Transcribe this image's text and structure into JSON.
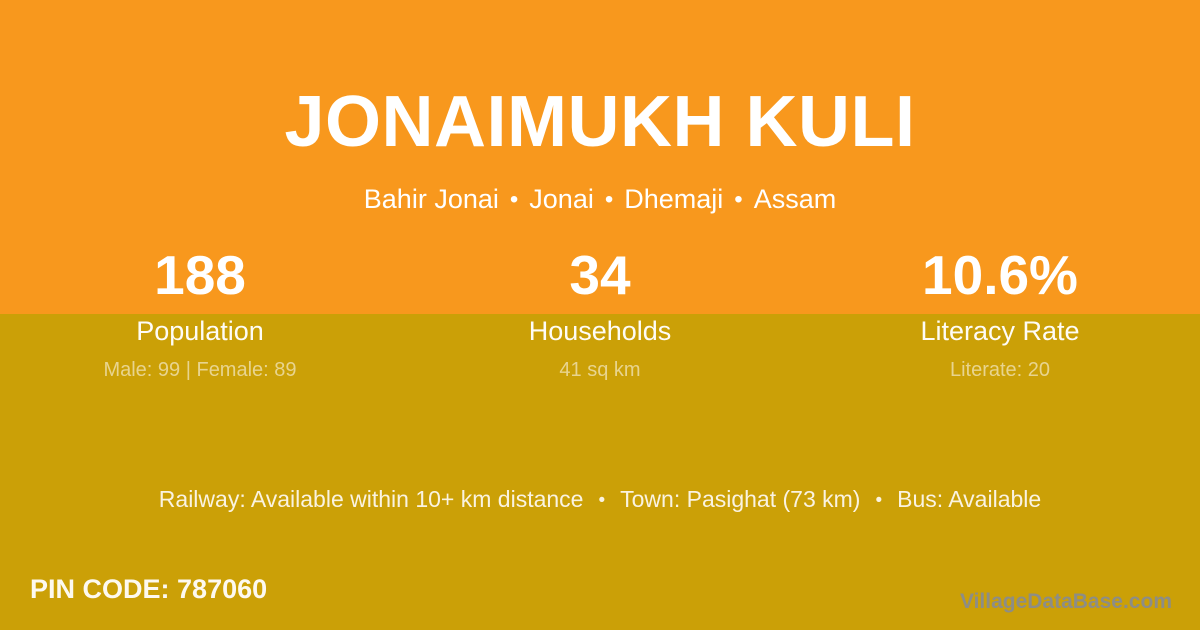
{
  "theme": {
    "orange": "#F8981D",
    "gold": "#CBA007",
    "text_white": "#FFFFFF",
    "text_cream": "#FAF3E1",
    "text_pale_gold": "#E8D48F",
    "watermark_gray": "#8D8D86"
  },
  "header": {
    "title": "JONAIMUKH KULI",
    "location": {
      "parts": [
        "Bahir Jonai",
        "Jonai",
        "Dhemaji",
        "Assam"
      ],
      "separator": "•"
    }
  },
  "stats": [
    {
      "value": "188",
      "label": "Population",
      "sub": "Male: 99 | Female: 89"
    },
    {
      "value": "34",
      "label": "Households",
      "sub": "41 sq km"
    },
    {
      "value": "10.6%",
      "label": "Literacy Rate",
      "sub": "Literate: 20"
    }
  ],
  "transport": {
    "separator": "•",
    "railway": "Railway: Available within 10+ km distance",
    "town": "Town: Pasighat (73 km)",
    "bus": "Bus: Available"
  },
  "footer": {
    "pin_label": "PIN CODE:",
    "pin_value": "787060",
    "watermark": "VillageDataBase.com"
  }
}
